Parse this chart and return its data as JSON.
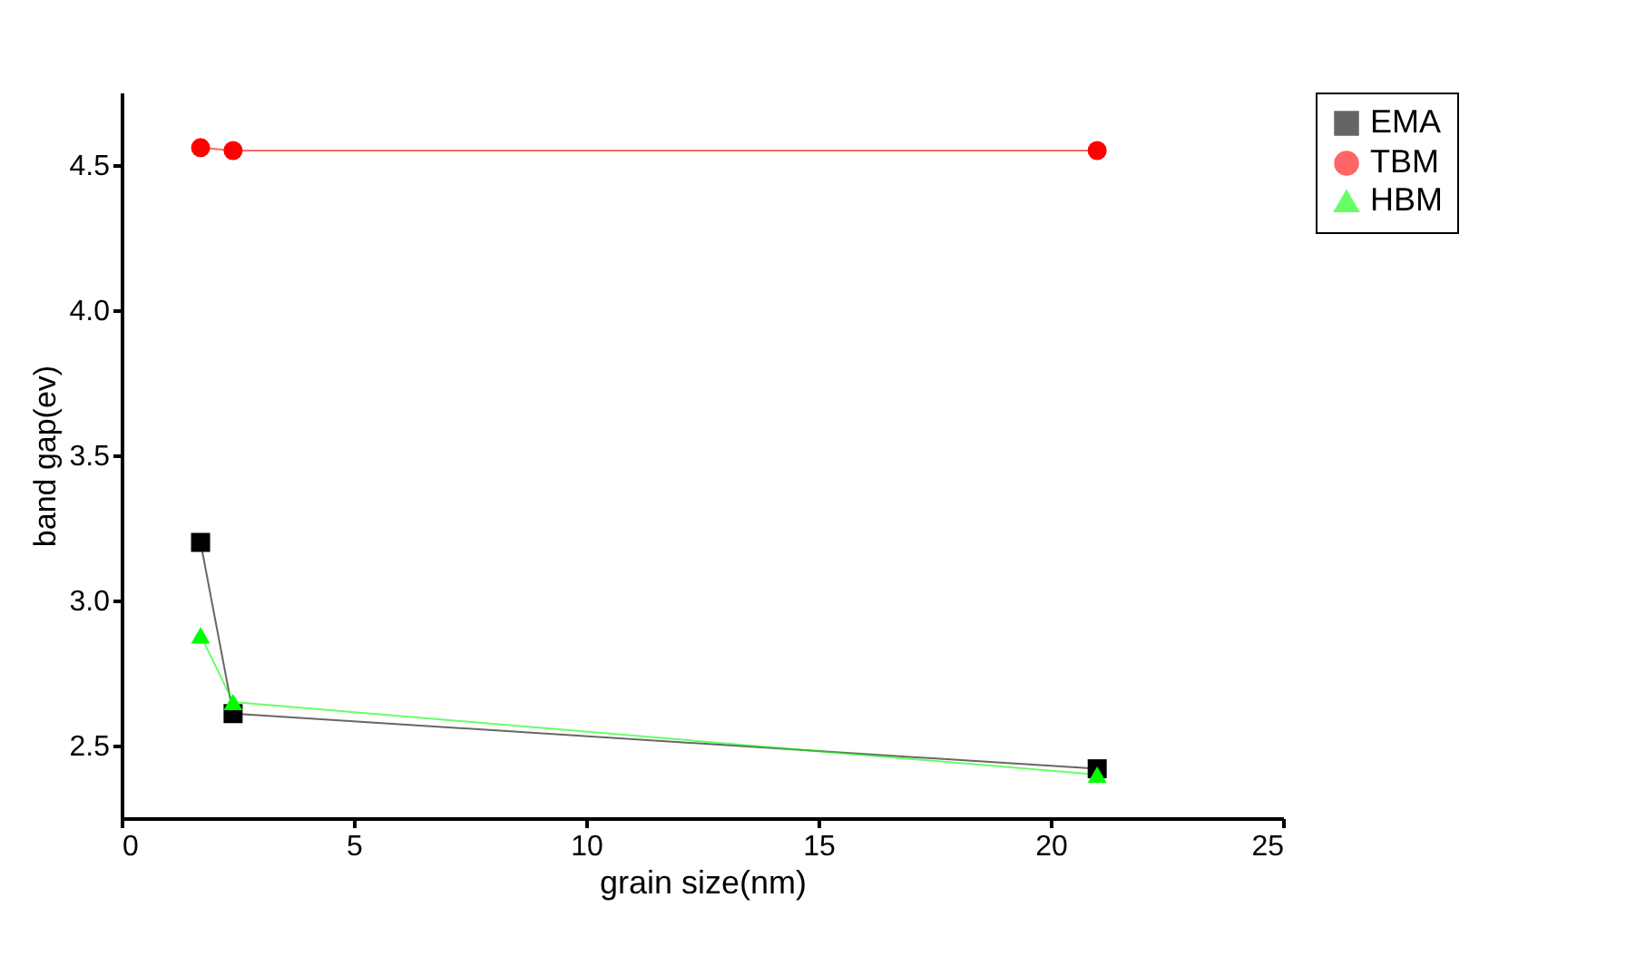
{
  "chart_data": {
    "type": "line",
    "xlabel": "grain size(nm)",
    "ylabel": "band gap(ev)",
    "x": [
      1.7,
      2.4,
      21
    ],
    "series": [
      {
        "name": "EMA",
        "color": "#000000",
        "marker": "square",
        "values": [
          3.2,
          2.61,
          2.42
        ]
      },
      {
        "name": "TBM",
        "color": "#ff0000",
        "marker": "circle",
        "values": [
          4.56,
          4.55,
          4.55
        ]
      },
      {
        "name": "HBM",
        "color": "#00ff00",
        "marker": "triangle",
        "values": [
          2.88,
          2.65,
          2.4
        ]
      }
    ],
    "xlim": [
      0,
      25
    ],
    "xticks": [
      0,
      5,
      10,
      15,
      20,
      25
    ],
    "ylim": [
      2.25,
      4.75
    ],
    "yticks": [
      2.5,
      {
        "value": 3,
        "label": "3.0"
      },
      3.5,
      {
        "value": 4,
        "label": "4.0"
      },
      4.5
    ],
    "grid": false,
    "legend": "top right"
  }
}
